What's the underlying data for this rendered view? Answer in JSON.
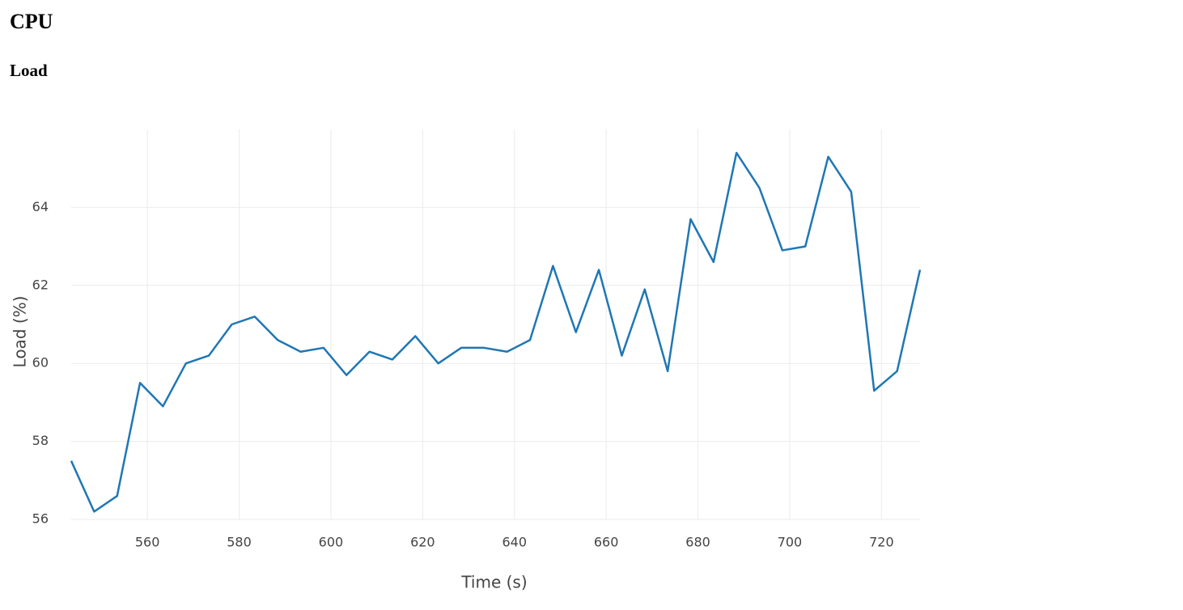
{
  "page": {
    "heading": "CPU",
    "subheading": "Load"
  },
  "chart_data": {
    "type": "line",
    "x_label": "Time (s)",
    "y_label": "Load (%)",
    "x": [
      543.4,
      548.4,
      553.4,
      558.4,
      563.4,
      568.4,
      573.4,
      578.4,
      583.4,
      588.4,
      593.4,
      598.4,
      603.4,
      608.4,
      613.4,
      618.4,
      623.4,
      628.4,
      633.4,
      638.4,
      643.4,
      648.4,
      653.4,
      658.4,
      663.4,
      668.4,
      673.4,
      678.4,
      683.4,
      688.4,
      693.4,
      698.4,
      703.4,
      708.4,
      713.4,
      718.4,
      723.4,
      728.4
    ],
    "series": [
      {
        "name": "Load",
        "color": "#1f77b4",
        "values": [
          57.5,
          56.2,
          56.6,
          59.5,
          58.9,
          60.0,
          60.2,
          61.0,
          61.2,
          60.6,
          60.3,
          60.4,
          59.7,
          60.3,
          60.1,
          60.7,
          60.0,
          60.4,
          60.4,
          60.3,
          60.6,
          62.5,
          60.8,
          62.4,
          60.2,
          61.9,
          59.8,
          63.7,
          62.6,
          65.4,
          64.5,
          62.9,
          63.0,
          65.3,
          64.4,
          59.3,
          59.8,
          62.4
        ]
      }
    ],
    "xlim": [
      543.4,
      728.4
    ],
    "ylim": [
      56,
      66
    ],
    "xticks": [
      560,
      580,
      600,
      620,
      640,
      660,
      680,
      700,
      720
    ],
    "yticks": [
      56,
      58,
      60,
      62,
      64
    ],
    "grid": true
  }
}
